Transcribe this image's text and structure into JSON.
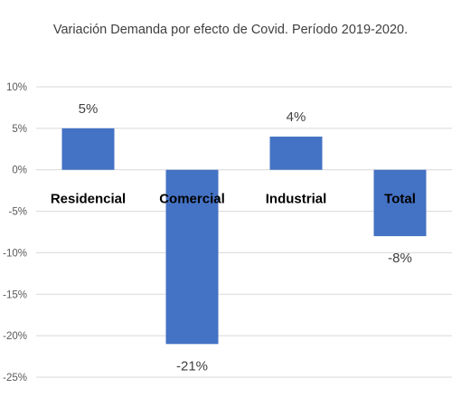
{
  "chart_data": {
    "type": "bar",
    "title": "Variación Demanda por efecto de Covid. Período 2019-2020.",
    "xlabel": "",
    "ylabel": "",
    "categories": [
      "Residencial",
      "Comercial",
      "Industrial",
      "Total"
    ],
    "values": [
      5,
      -21,
      4,
      -8
    ],
    "data_labels": [
      "5%",
      "-21%",
      "4%",
      "-8%"
    ],
    "ylim": [
      -25,
      10
    ],
    "yticks": [
      10,
      5,
      0,
      -5,
      -10,
      -15,
      -20,
      -25
    ],
    "ytick_labels": [
      "10%",
      "5%",
      "0%",
      "-5%",
      "-10%",
      "-15%",
      "-20%",
      "-25%"
    ],
    "grid": true,
    "legend": "none",
    "bar_color": "#4472c4"
  }
}
